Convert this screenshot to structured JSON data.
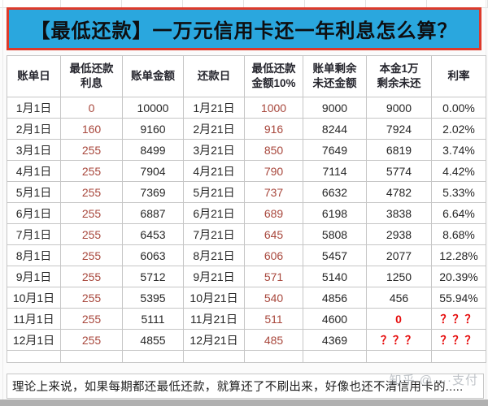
{
  "title": "【最低还款】一万元信用卡还一年利息怎么算？",
  "colors": {
    "title_background": "#2aa7de",
    "title_border_red": "#dd3a2b",
    "column_accent_red": "#a8473c",
    "alert_red": "#e60d0d",
    "text_black": "#262626",
    "grid_border": "#c6c6c6"
  },
  "table": {
    "headers": [
      "账单日",
      "最低还款\n利息",
      "账单金额",
      "还款日",
      "最低还款\n金额10%",
      "账单剩余\n未还金额",
      "本金1万\n剩余未还",
      "利率"
    ],
    "rows": [
      [
        "1月1日",
        "0",
        "10000",
        "1月21日",
        "1000",
        "9000",
        "9000",
        "0.00%"
      ],
      [
        "2月1日",
        "160",
        "9160",
        "2月21日",
        "916",
        "8244",
        "7924",
        "2.02%"
      ],
      [
        "3月1日",
        "255",
        "8499",
        "3月21日",
        "850",
        "7649",
        "6819",
        "3.74%"
      ],
      [
        "4月1日",
        "255",
        "7904",
        "4月21日",
        "790",
        "7114",
        "5774",
        "4.42%"
      ],
      [
        "5月1日",
        "255",
        "7369",
        "5月21日",
        "737",
        "6632",
        "4782",
        "5.33%"
      ],
      [
        "6月1日",
        "255",
        "6887",
        "6月21日",
        "689",
        "6198",
        "3838",
        "6.64%"
      ],
      [
        "7月1日",
        "255",
        "6453",
        "7月21日",
        "645",
        "5808",
        "2938",
        "8.68%"
      ],
      [
        "8月1日",
        "255",
        "6063",
        "8月21日",
        "606",
        "5457",
        "2077",
        "12.28%"
      ],
      [
        "9月1日",
        "255",
        "5712",
        "9月21日",
        "571",
        "5140",
        "1250",
        "20.39%"
      ],
      [
        "10月1日",
        "255",
        "5395",
        "10月21日",
        "540",
        "4856",
        "456",
        "55.94%"
      ],
      [
        "11月1日",
        "255",
        "5111",
        "11月21日",
        "511",
        "4600",
        "0",
        "？？？"
      ],
      [
        "12月1日",
        "255",
        "4855",
        "12月21日",
        "485",
        "4369",
        "？？？",
        "？？？"
      ]
    ]
  },
  "note": "理论上来说，如果每期都还最低还款，就算还了不刷出来，好像也还不清信用卡的.....",
  "watermark": "知乎 @····支付"
}
